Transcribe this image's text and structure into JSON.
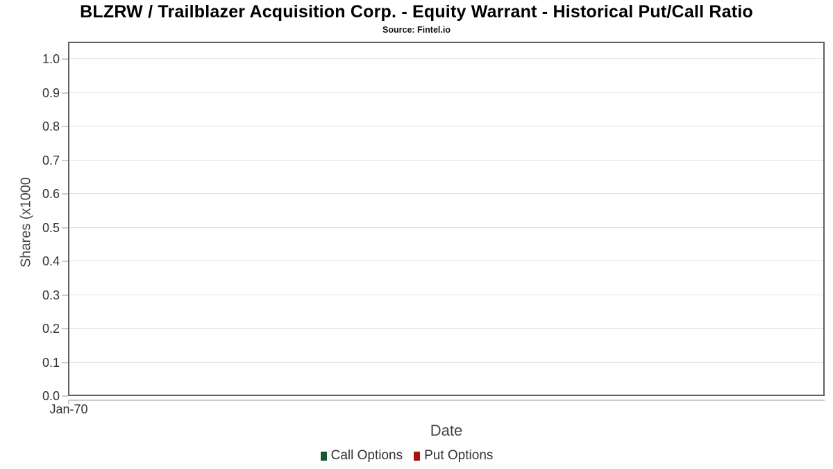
{
  "chart_data": {
    "type": "bar",
    "title": "BLZRW / Trailblazer Acquisition Corp. - Equity Warrant - Historical Put/Call Ratio",
    "subtitle": "Source: Fintel.io",
    "xlabel": "Date",
    "ylabel": "Shares (x1000",
    "ylim": [
      0.0,
      1.0
    ],
    "y_ticks": [
      "0.0",
      "0.1",
      "0.2",
      "0.3",
      "0.4",
      "0.5",
      "0.6",
      "0.7",
      "0.8",
      "0.9",
      "1.0"
    ],
    "x_ticks": [
      "Jan-70"
    ],
    "grid": true,
    "legend_position": "bottom",
    "series": [
      {
        "name": "Call Options",
        "color": "#1a5632",
        "values": []
      },
      {
        "name": "Put Options",
        "color": "#b00d0d",
        "values": []
      }
    ],
    "colors": {
      "grid": "#e0e0e0",
      "plot_border": "#606060",
      "axis_line": "#cccccc",
      "tick_label": "#333333",
      "axis_title": "#444444",
      "title_text": "#000000"
    }
  }
}
